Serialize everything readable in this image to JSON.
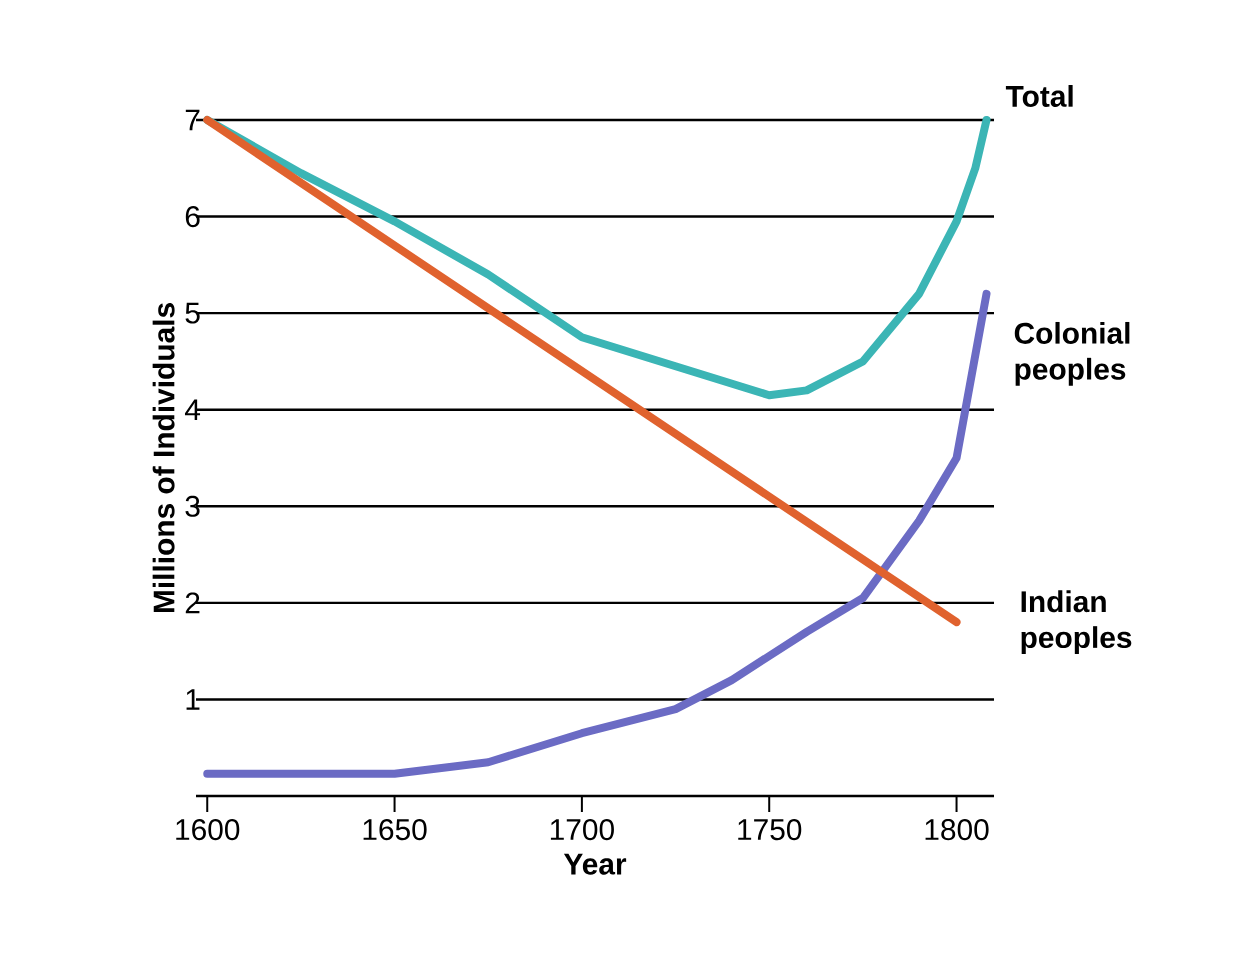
{
  "chart_data": {
    "type": "line",
    "xlabel": "Year",
    "ylabel": "Millions of Individuals",
    "xlim": [
      1597,
      1810
    ],
    "ylim": [
      0,
      7
    ],
    "xticks": [
      1600,
      1650,
      1700,
      1750,
      1800
    ],
    "yticks": [
      1,
      2,
      3,
      4,
      5,
      6,
      7
    ],
    "grid": "y",
    "legend": false,
    "marker": "none",
    "line_style": "solid",
    "series": [
      {
        "name": "Total",
        "color": "#3bb5b5",
        "x": [
          1600,
          1625,
          1650,
          1675,
          1700,
          1725,
          1750,
          1760,
          1775,
          1790,
          1800,
          1805,
          1808
        ],
        "values": [
          7,
          6.45,
          5.95,
          5.4,
          4.75,
          4.45,
          4.15,
          4.2,
          4.5,
          5.2,
          5.95,
          6.5,
          7
        ]
      },
      {
        "name": "Colonial peoples",
        "color": "#6b6bc4",
        "x": [
          1600,
          1650,
          1675,
          1700,
          1725,
          1740,
          1760,
          1775,
          1790,
          1800,
          1808
        ],
        "values": [
          0.23,
          0.23,
          0.35,
          0.65,
          0.9,
          1.2,
          1.7,
          2.05,
          2.85,
          3.5,
          5.2
        ]
      },
      {
        "name": "Indian peoples",
        "color": "#e0622e",
        "x": [
          1600,
          1800
        ],
        "values": [
          7,
          1.8
        ]
      }
    ]
  }
}
